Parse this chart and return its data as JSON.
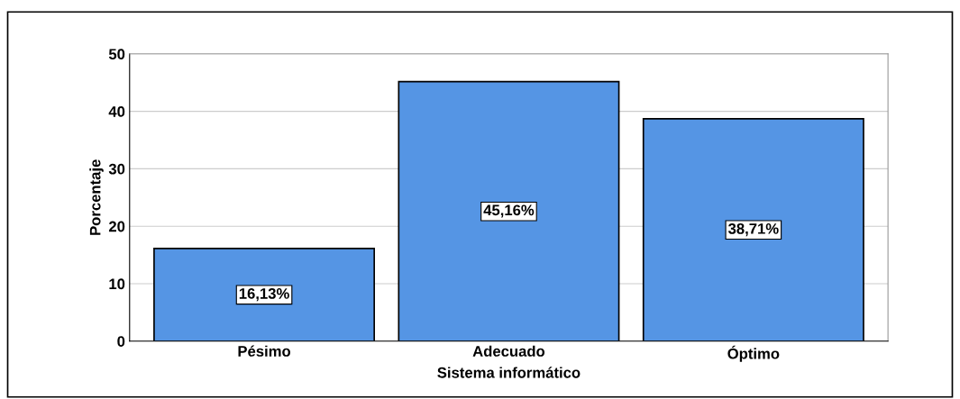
{
  "chart_data": {
    "type": "bar",
    "xlabel": "Sistema informático",
    "ylabel": "Porcentaje",
    "categories": [
      "Pésimo",
      "Adecuado",
      "Óptimo"
    ],
    "values": [
      16.13,
      45.16,
      38.71
    ],
    "value_labels": [
      "16,13%",
      "45,16%",
      "38,71%"
    ],
    "color": "#5595e4",
    "ylim": [
      0,
      50
    ],
    "yticks": [
      0,
      10,
      20,
      30,
      40,
      50
    ],
    "grid": "y"
  }
}
